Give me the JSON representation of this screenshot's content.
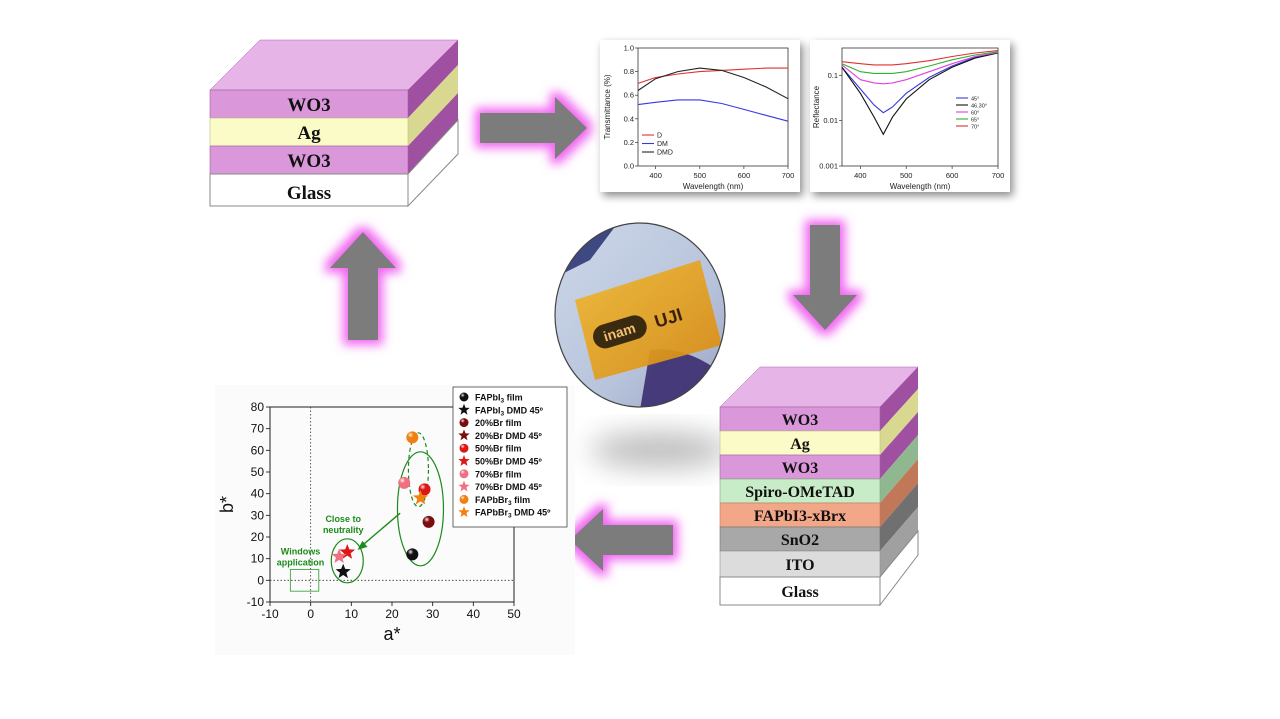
{
  "top_stack": {
    "layers": [
      "WO3",
      "Ag",
      "WO3",
      "Glass"
    ]
  },
  "device_stack": {
    "layers": [
      "WO3",
      "Ag",
      "WO3",
      "Spiro-OMeTAD",
      "FAPbI3-xBrx",
      "SnO2",
      "ITO",
      "Glass"
    ]
  },
  "photo": {
    "logo_text": "inam",
    "logo_text2": "UJI"
  },
  "chart_data": [
    {
      "type": "line",
      "title": "",
      "xlabel": "Wavelength (nm)",
      "ylabel": "Transmittance (%)",
      "xlim": [
        360,
        700
      ],
      "ylim": [
        0.0,
        1.0
      ],
      "x_ticks": [
        400,
        500,
        600,
        700
      ],
      "y_ticks": [
        "0.0",
        "0.2",
        "0.4",
        "0.6",
        "0.8",
        "1.0"
      ],
      "x": [
        360,
        400,
        450,
        500,
        550,
        600,
        650,
        700
      ],
      "series": [
        {
          "name": "D",
          "color": "#e03030",
          "values": [
            0.7,
            0.75,
            0.78,
            0.8,
            0.81,
            0.82,
            0.83,
            0.83
          ]
        },
        {
          "name": "DM",
          "color": "#3838e0",
          "values": [
            0.52,
            0.54,
            0.56,
            0.56,
            0.53,
            0.48,
            0.43,
            0.38
          ]
        },
        {
          "name": "DMD",
          "color": "#222222",
          "values": [
            0.64,
            0.74,
            0.8,
            0.83,
            0.81,
            0.75,
            0.67,
            0.57
          ]
        }
      ]
    },
    {
      "type": "line",
      "title": "",
      "xlabel": "Wavelength (nm)",
      "ylabel": "Reflectance",
      "scale_y": "log",
      "xlim": [
        360,
        700
      ],
      "ylim": [
        0.001,
        0.4
      ],
      "x_ticks": [
        400,
        500,
        600,
        700
      ],
      "y_ticks": [
        "0.001",
        "0.01",
        "0.1"
      ],
      "x": [
        360,
        400,
        430,
        450,
        470,
        500,
        550,
        600,
        650,
        700
      ],
      "series": [
        {
          "name": "45°",
          "color": "#3838e0",
          "values": [
            0.15,
            0.05,
            0.022,
            0.015,
            0.02,
            0.04,
            0.09,
            0.16,
            0.25,
            0.32
          ]
        },
        {
          "name": "46.30°",
          "color": "#111111",
          "values": [
            0.15,
            0.04,
            0.012,
            0.005,
            0.012,
            0.03,
            0.08,
            0.15,
            0.24,
            0.31
          ]
        },
        {
          "name": "60°",
          "color": "#e040e0",
          "values": [
            0.17,
            0.08,
            0.068,
            0.065,
            0.068,
            0.08,
            0.12,
            0.18,
            0.26,
            0.32
          ]
        },
        {
          "name": "65°",
          "color": "#30b030",
          "values": [
            0.18,
            0.12,
            0.11,
            0.11,
            0.11,
            0.12,
            0.16,
            0.22,
            0.28,
            0.33
          ]
        },
        {
          "name": "70°",
          "color": "#e03030",
          "values": [
            0.2,
            0.18,
            0.17,
            0.17,
            0.17,
            0.18,
            0.21,
            0.26,
            0.31,
            0.35
          ]
        }
      ]
    },
    {
      "type": "scatter",
      "title": "",
      "xlabel": "a*",
      "ylabel": "b*",
      "xlim": [
        -10,
        50
      ],
      "ylim": [
        -10,
        80
      ],
      "x_ticks": [
        "-10",
        "0",
        "10",
        "20",
        "30",
        "40",
        "50"
      ],
      "y_ticks": [
        "-10",
        "0",
        "10",
        "20",
        "30",
        "40",
        "50",
        "60",
        "70",
        "80"
      ],
      "series": [
        {
          "name": "FAPbI3 film",
          "label_main": "FAPbI",
          "label_sub": "3",
          "label_rest": " film",
          "color": "#111111",
          "marker": "ball",
          "x": 25,
          "y": 12
        },
        {
          "name": "FAPbI3 DMD 45º",
          "label_main": "FAPbI",
          "label_sub": "3",
          "label_rest": " DMD 45º",
          "color": "#111111",
          "marker": "star",
          "x": 8,
          "y": 4
        },
        {
          "name": "20%Br film",
          "label_main": "20%Br film",
          "label_sub": "",
          "label_rest": "",
          "color": "#7a0d0d",
          "marker": "ball",
          "x": 29,
          "y": 27
        },
        {
          "name": "20%Br DMD 45º",
          "label_main": "20%Br DMD 45º",
          "label_sub": "",
          "label_rest": "",
          "color": "#7a0d0d",
          "marker": "star",
          "x": 9,
          "y": 13
        },
        {
          "name": "50%Br film",
          "label_main": "50%Br film",
          "label_sub": "",
          "label_rest": "",
          "color": "#e01515",
          "marker": "ball",
          "x": 28,
          "y": 42
        },
        {
          "name": "50%Br DMD 45º",
          "label_main": "50%Br DMD 45º",
          "label_sub": "",
          "label_rest": "",
          "color": "#e01515",
          "marker": "star",
          "x": 9,
          "y": 13
        },
        {
          "name": "70%Br film",
          "label_main": "70%Br film",
          "label_sub": "",
          "label_rest": "",
          "color": "#f07080",
          "marker": "ball",
          "x": 23,
          "y": 45
        },
        {
          "name": "70%Br DMD 45º",
          "label_main": "70%Br DMD 45º",
          "label_sub": "",
          "label_rest": "",
          "color": "#f07080",
          "marker": "star",
          "x": 7,
          "y": 11
        },
        {
          "name": "FAPbBr3 film",
          "label_main": "FAPbBr",
          "label_sub": "3",
          "label_rest": " film",
          "color": "#f08010",
          "marker": "ball",
          "x": 25,
          "y": 66
        },
        {
          "name": "FAPbBr3 DMD 45º",
          "label_main": "FAPbBr",
          "label_sub": "3",
          "label_rest": " DMD 45º",
          "color": "#f08010",
          "marker": "star",
          "x": 27,
          "y": 38
        }
      ],
      "annotations": {
        "close_to_neutrality": [
          "Close to",
          "neutrality"
        ],
        "windows_application": [
          "Windows",
          "application"
        ]
      }
    }
  ]
}
